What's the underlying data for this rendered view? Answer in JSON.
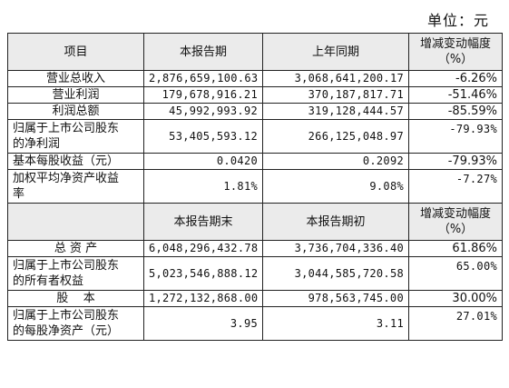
{
  "unit_label": "单位：元",
  "header1": {
    "item": "项目",
    "current": "本报告期",
    "prior": "上年同期",
    "change_line1": "增减变动幅度",
    "change_line2": "（%）"
  },
  "rows1": [
    {
      "label": "营业总收入",
      "current": "2,876,659,100.63",
      "prior": "3,068,641,200.17",
      "change": "-6.26%"
    },
    {
      "label": "营业利润",
      "current": "179,678,916.21",
      "prior": "370,187,817.71",
      "change": "-51.46%"
    },
    {
      "label": "利润总额",
      "current": "45,992,993.92",
      "prior": "319,128,444.57",
      "change": "-85.59%"
    },
    {
      "label_line1": "归属于上市公司股东",
      "label_line2": "的净利润",
      "current": "53,405,593.12",
      "prior": "266,125,048.97",
      "change": "-79.93%"
    },
    {
      "label": "基本每股收益（元）",
      "current": "0.0420",
      "prior": "0.2092",
      "change": "-79.93%"
    },
    {
      "label_line1": "加权平均净资产收益",
      "label_line2": "率",
      "current": "1.81%",
      "prior": "9.08%",
      "change": "-7.27%"
    }
  ],
  "header2": {
    "current": "本报告期末",
    "prior": "本报告期初",
    "change_line1": "增减变动幅度",
    "change_line2": "（%）"
  },
  "rows2": [
    {
      "label": "总 资 产",
      "current": "6,048,296,432.78",
      "prior": "3,736,704,336.40",
      "change": "61.86%"
    },
    {
      "label_line1": "归属于上市公司股东",
      "label_line2": "的所有者权益",
      "current": "5,023,546,888.12",
      "prior": "3,044,585,720.58",
      "change": "65.00%"
    },
    {
      "label": "股    本",
      "current": "1,272,132,868.00",
      "prior": "978,563,745.00",
      "change": "30.00%"
    },
    {
      "label_line1": "归属于上市公司股东",
      "label_line2": "的每股净资产（元）",
      "current": "3.95",
      "prior": "3.11",
      "change": "27.01%"
    }
  ]
}
